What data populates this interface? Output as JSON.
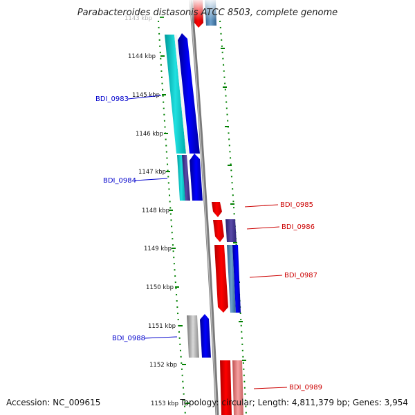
{
  "title": "Parabacteroides distasonis ATCC 8503, complete genome",
  "footer": {
    "accession": "Accession: NC_009615",
    "topology": "Topology: circular; Length: 4,811,379 bp; Genes: 3,954"
  },
  "ruler": {
    "ticks": [
      "1143 kbp",
      "1144 kbp",
      "1145 kbp",
      "1146 kbp",
      "1147 kbp",
      "1148 kbp",
      "1149 kbp",
      "1150 kbp",
      "1151 kbp",
      "1152 kbp",
      "1153 kbp"
    ]
  },
  "gene_labels": {
    "left": [
      "BDI_0983",
      "BDI_0984",
      "BDI_0988"
    ],
    "right": [
      "BDI_0985",
      "BDI_0986",
      "BDI_0987",
      "BDI_0989"
    ]
  },
  "colors": {
    "forward_strand": "#ff0000",
    "reverse_strand": "#0000ff",
    "label_left": "#0000cc",
    "label_right": "#cc0000",
    "tick_marks": "#008000",
    "backbone": "#888888"
  }
}
